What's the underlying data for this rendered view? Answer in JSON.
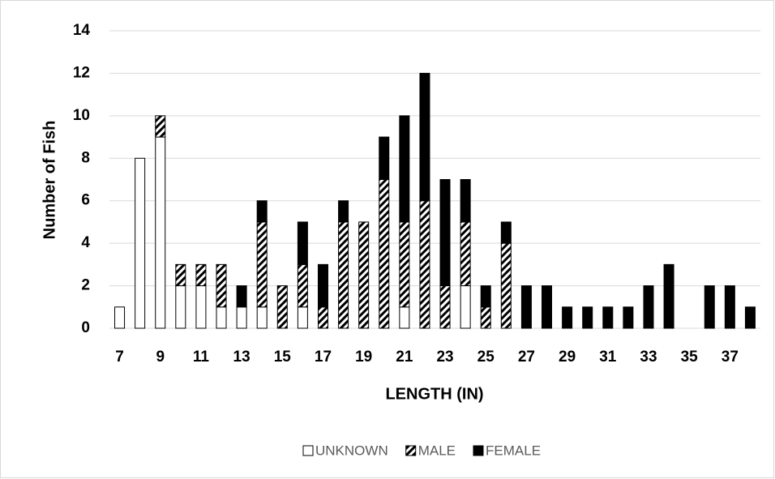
{
  "chart_data": {
    "type": "bar",
    "stacked": true,
    "x_label": "LENGTH (IN)",
    "y_label": "Number of Fish",
    "categories": [
      "7",
      null,
      "9",
      null,
      "11",
      null,
      "13",
      null,
      "15",
      null,
      "17",
      null,
      "19",
      null,
      "21",
      null,
      "23",
      null,
      "25",
      null,
      "27",
      null,
      "29",
      null,
      "31",
      null,
      "33",
      null,
      "35",
      null,
      "37",
      null
    ],
    "series": [
      {
        "name": "UNKNOWN",
        "color": "#ffffff",
        "values": [
          1,
          8,
          9,
          2,
          2,
          1,
          1,
          1,
          0,
          1,
          0,
          0,
          0,
          0,
          1,
          0,
          0,
          2,
          0,
          0,
          0,
          0,
          0,
          0,
          0,
          0,
          0,
          0,
          0,
          0,
          0,
          0
        ]
      },
      {
        "name": "MALE",
        "color": "#000000",
        "hatch": true,
        "values": [
          0,
          0,
          1,
          1,
          1,
          2,
          0,
          4,
          2,
          2,
          1,
          5,
          5,
          7,
          4,
          6,
          2,
          3,
          1,
          4,
          0,
          0,
          0,
          0,
          0,
          0,
          0,
          0,
          0,
          0,
          0,
          0
        ]
      },
      {
        "name": "FEMALE",
        "color": "#000000",
        "values": [
          0,
          0,
          0,
          0,
          0,
          0,
          1,
          1,
          0,
          2,
          2,
          1,
          0,
          2,
          5,
          6,
          5,
          2,
          1,
          1,
          2,
          2,
          1,
          1,
          1,
          1,
          2,
          3,
          0,
          2,
          2,
          1
        ]
      }
    ],
    "ylim": [
      0,
      14
    ],
    "yticks": [
      0,
      2,
      4,
      6,
      8,
      10,
      12,
      14
    ],
    "grid": true,
    "legend": "bottom"
  }
}
